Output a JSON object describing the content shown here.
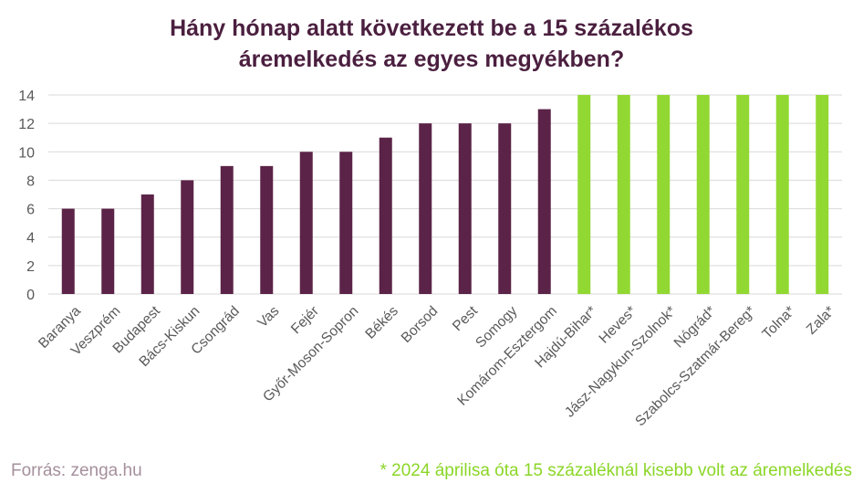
{
  "chart_data": {
    "type": "bar",
    "title_lines": [
      "Hány hónap alatt következett be a 15 százalékos",
      "áremelkedés az egyes megyékben?"
    ],
    "categories": [
      "Baranya",
      "Veszprém",
      "Budapest",
      "Bács-Kiskun",
      "Csongrád",
      "Vas",
      "Fejér",
      "Győr-Moson-Sopron",
      "Békés",
      "Borsod",
      "Pest",
      "Somogy",
      "Komárom-Esztergom",
      "Hajdú-Bihar*",
      "Heves*",
      "Jász-Nagykun-Szolnok*",
      "Nógrád*",
      "Szabolcs-Szatmár-Bereg*",
      "Tolna*",
      "Zala*"
    ],
    "values": [
      6,
      6,
      7,
      8,
      9,
      9,
      10,
      10,
      11,
      12,
      12,
      12,
      13,
      14,
      14,
      14,
      14,
      14,
      14,
      14
    ],
    "highlight": [
      false,
      false,
      false,
      false,
      false,
      false,
      false,
      false,
      false,
      false,
      false,
      false,
      false,
      true,
      true,
      true,
      true,
      true,
      true,
      true
    ],
    "yticks": [
      0,
      2,
      4,
      6,
      8,
      10,
      12,
      14
    ],
    "ylim": [
      0,
      14
    ],
    "grid": true,
    "colors": {
      "default": "#5b2347",
      "highlight": "#92d832",
      "grid": "#d9d9d9",
      "axis_text": "#595959"
    }
  },
  "footer": {
    "source": "Forrás: zenga.hu",
    "note": "* 2024 áprilisa óta 15 százaléknál kisebb volt az áremelkedés"
  }
}
